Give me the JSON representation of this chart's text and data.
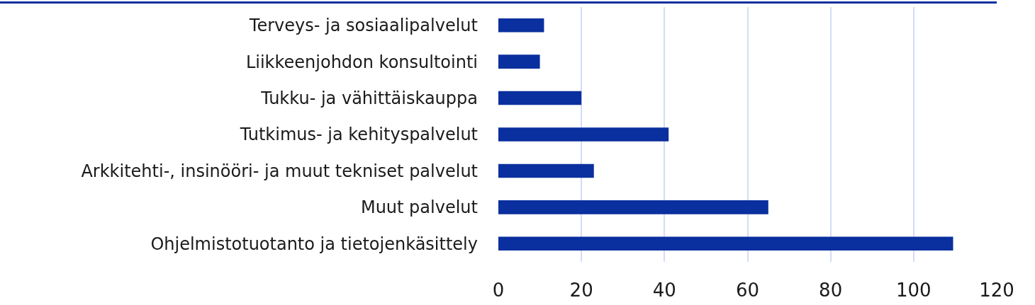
{
  "chart_data": {
    "type": "bar",
    "orientation": "horizontal",
    "categories": [
      "Terveys- ja sosiaalipalvelut",
      "Liikkeenjohdon konsultointi",
      "Tukku- ja vähittäiskauppa",
      "Tutkimus- ja kehityspalvelut",
      "Arkkitehti-, insinööri- ja muut tekniset palvelut",
      "Muut palvelut",
      "Ohjelmistotuotanto ja tietojenkäsittely"
    ],
    "values": [
      11,
      10,
      20,
      41,
      23,
      65,
      109.5
    ],
    "color": "#0a2f9e",
    "xlim": [
      0,
      120
    ],
    "xticks": [
      0,
      20,
      40,
      60,
      80,
      100,
      120
    ],
    "grid": "x",
    "legend": false
  }
}
